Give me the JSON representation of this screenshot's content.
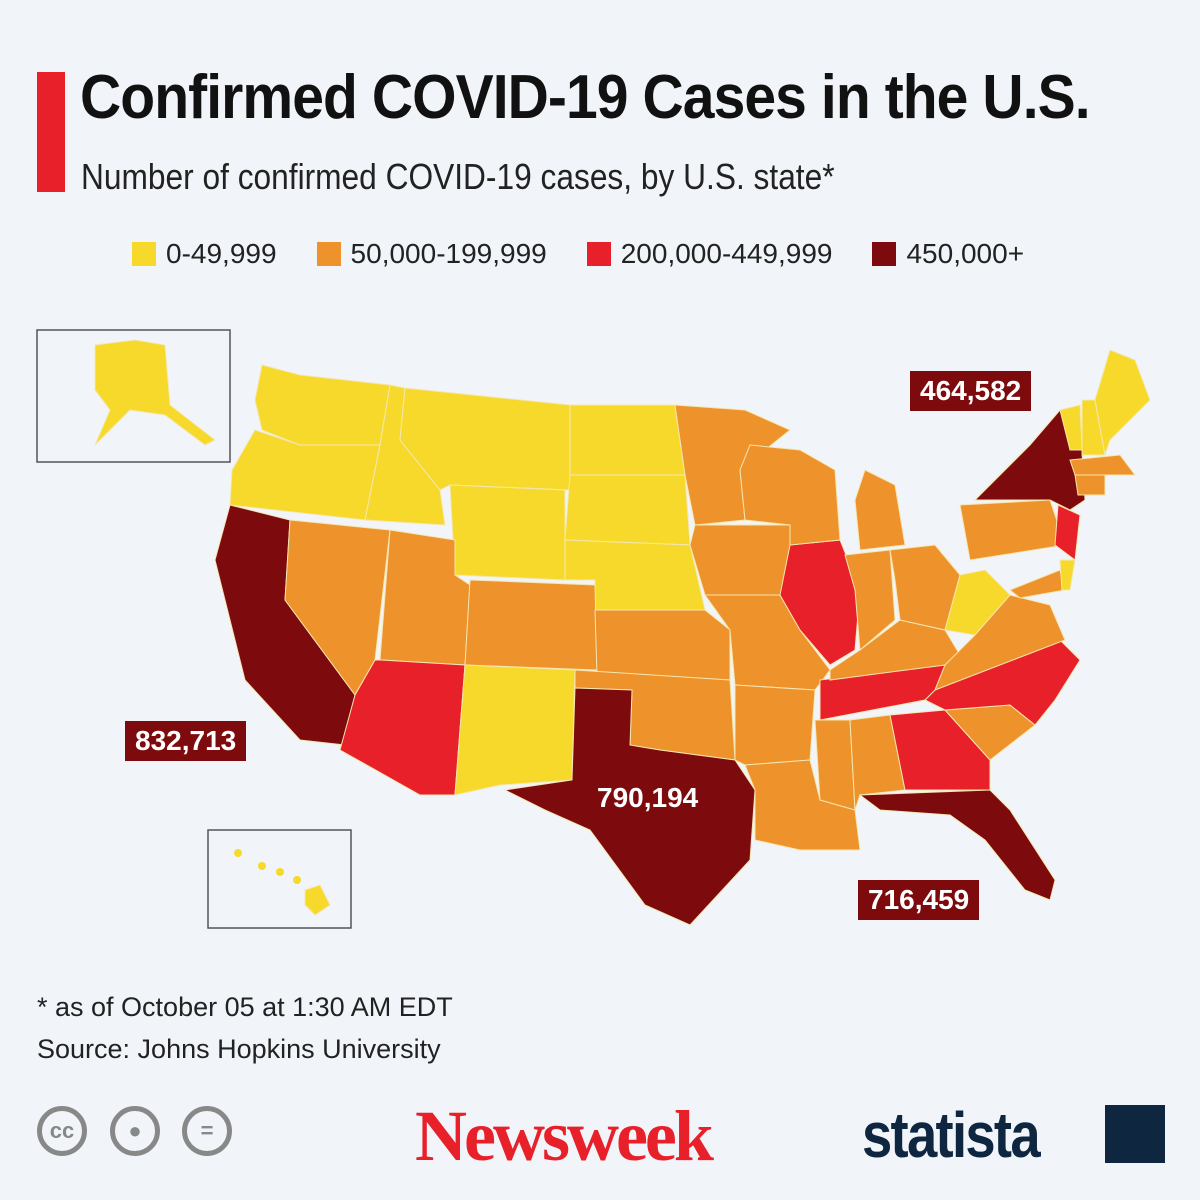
{
  "header": {
    "title": "Confirmed COVID-19 Cases in the U.S.",
    "subtitle": "Number of confirmed COVID-19 cases, by U.S. state*"
  },
  "legend": [
    {
      "label": "0-49,999",
      "color": "#f7d92b"
    },
    {
      "label": "50,000-199,999",
      "color": "#ee922b"
    },
    {
      "label": "200,000-449,999",
      "color": "#e8202a"
    },
    {
      "label": "450,000+",
      "color": "#7d0a0c"
    }
  ],
  "states": {
    "WA": 0,
    "OR": 0,
    "ID": 0,
    "MT": 0,
    "WY": 0,
    "ND": 0,
    "SD": 0,
    "NE": 0,
    "NM": 0,
    "WV": 0,
    "ME": 0,
    "NH": 0,
    "VT": 0,
    "DE": 0,
    "AK": 0,
    "HI": 0,
    "NV": 1,
    "UT": 1,
    "CO": 1,
    "KS": 1,
    "OK": 1,
    "MN": 1,
    "IA": 1,
    "MO": 1,
    "AR": 1,
    "LA": 1,
    "MS": 1,
    "AL": 1,
    "WI": 1,
    "MI": 1,
    "IN": 1,
    "OH": 1,
    "KY": 1,
    "PA": 1,
    "VA": 1,
    "SC": 1,
    "MD": 1,
    "CT": 1,
    "MA": 1,
    "AZ": 2,
    "IL": 2,
    "TN": 2,
    "NC": 2,
    "GA": 2,
    "NJ": 2,
    "CA": 3,
    "TX": 3,
    "FL": 3,
    "NY": 3
  },
  "callouts": {
    "NY": "464,582",
    "CA": "832,713",
    "TX": "790,194",
    "FL": "716,459"
  },
  "footer": {
    "note": "* as of October 05 at 1:30 AM EDT",
    "source": "Source: Johns Hopkins University",
    "license_icons": [
      "cc-icon",
      "attribution-icon",
      "no-derivatives-icon"
    ],
    "cc_text": "cc",
    "newsweek": "Newsweek",
    "statista": "statista"
  }
}
